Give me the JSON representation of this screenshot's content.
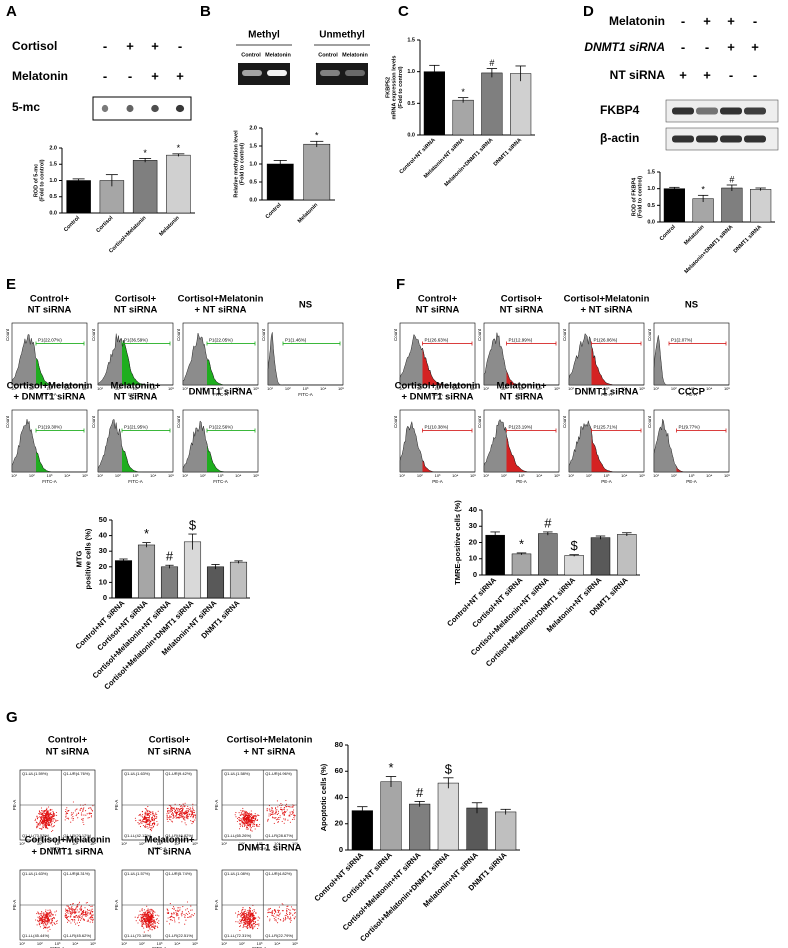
{
  "panel_labels": [
    "A",
    "B",
    "C",
    "D",
    "E",
    "F",
    "G"
  ],
  "panel_a": {
    "rows": [
      {
        "label": "Cortisol",
        "signs": [
          "-",
          "+",
          "+",
          "-"
        ]
      },
      {
        "label": "Melatonin",
        "signs": [
          "-",
          "-",
          "+",
          "+"
        ]
      }
    ],
    "blot_label": "5-mc"
  },
  "panel_b": {
    "headers": [
      "Methyl",
      "Unmethyl"
    ],
    "lanes": [
      "Control",
      "Melatonin",
      "Control",
      "Melatonin"
    ]
  },
  "panel_d": {
    "rows": [
      {
        "label": "Melatonin",
        "signs": [
          "-",
          "+",
          "+",
          "-"
        ]
      },
      {
        "label": "DNMT1 siRNA",
        "signs": [
          "-",
          "-",
          "+",
          "+"
        ]
      },
      {
        "label": "NT siRNA",
        "signs": [
          "+",
          "+",
          "-",
          "-"
        ]
      }
    ],
    "blots": [
      "FKBP4",
      "β-actin"
    ]
  },
  "flow_ticks": [
    "10¹",
    "10²",
    "10³",
    "10⁴",
    "10⁵"
  ],
  "panel_e": {
    "y_axis": "Count",
    "x_axis": "FITC-A",
    "plots": [
      {
        "title": [
          "Control+",
          "NT siRNA"
        ],
        "gate": "P1(22.07%)"
      },
      {
        "title": [
          "Cortisol+",
          "NT siRNA"
        ],
        "gate": "P1(36.59%)"
      },
      {
        "title": [
          "Cortisol+Melatonin",
          "+ NT siRNA"
        ],
        "gate": "P1(22.05%)"
      },
      {
        "title": [
          "NS"
        ],
        "gate": "P1(1.46%)"
      },
      {
        "title": [
          "Cortisol+Melatonin",
          "+ DNMT1 siRNA"
        ],
        "gate": "P1(19.30%)"
      },
      {
        "title": [
          "Melatonin+",
          "NT siRNA"
        ],
        "gate": "P1(21.95%)"
      },
      {
        "title": [
          "DNMT1 siRNA"
        ],
        "gate": "P1(22.56%)"
      }
    ]
  },
  "panel_f": {
    "y_axis": "Count",
    "x_axis": "PE-A",
    "plots": [
      {
        "title": [
          "Control+",
          "NT siRNA"
        ],
        "gate": "P1(26.63%)"
      },
      {
        "title": [
          "Cortisol+",
          "NT siRNA"
        ],
        "gate": "P1(12.99%)"
      },
      {
        "title": [
          "Cortisol+Melatonin",
          "+ NT siRNA"
        ],
        "gate": "P1(26.06%)"
      },
      {
        "title": [
          "NS"
        ],
        "gate": "P1(2.07%)"
      },
      {
        "title": [
          "Cortisol+Melatonin",
          "+ DNMT1 siRNA"
        ],
        "gate": "P1(10.38%)"
      },
      {
        "title": [
          "Melatonin+",
          "NT siRNA"
        ],
        "gate": "P1(23.19%)"
      },
      {
        "title": [
          "DNMT1 siRNA"
        ],
        "gate": "P1(25.71%)"
      },
      {
        "title": [
          "CCCP"
        ],
        "gate": "P1(9.77%)"
      }
    ]
  },
  "panel_g": {
    "y_axis": "PE-A",
    "x_axis": "FITC-A",
    "plots": [
      {
        "title": [
          "Control+",
          "NT siRNA"
        ],
        "quadrants": [
          "Q1-UL(1.59%)",
          "Q1-UR(4.76%)",
          "Q1-LL(73.53%)",
          "Q1-LR(20.12%)"
        ]
      },
      {
        "title": [
          "Cortisol+",
          "NT siRNA"
        ],
        "quadrants": [
          "Q1-UL(1.63%)",
          "Q1-UR(9.42%)",
          "Q1-LL(42.12%)",
          "Q1-LR(46.82%)"
        ]
      },
      {
        "title": [
          "Cortisol+Melatonin",
          "+ NT siRNA"
        ],
        "quadrants": [
          "Q1-UL(1.58%)",
          "Q1-UR(4.96%)",
          "Q1-LL(65.26%)",
          "Q1-LR(28.67%)"
        ]
      },
      {
        "title": [
          "Cortisol+Melatonin",
          "+ DNMT1 siRNA"
        ],
        "quadrants": [
          "Q1-UL(1.63%)",
          "Q1-UR(8.31%)",
          "Q1-LL(45.44%)",
          "Q1-LR(45.62%)"
        ]
      },
      {
        "title": [
          "Melatonin+",
          "NT siRNA"
        ],
        "quadrants": [
          "Q1-UL(1.57%)",
          "Q1-UR(5.74%)",
          "Q1-LL(70.18%)",
          "Q1-LR(22.51%)"
        ]
      },
      {
        "title": [
          "DNMT1 siRNA"
        ],
        "quadrants": [
          "Q1-UL(1.08%)",
          "Q1-UR(4.82%)",
          "Q1-LL(72.31%)",
          "Q1-LR(22.79%)"
        ]
      }
    ]
  },
  "chart_data": [
    {
      "type": "bar",
      "y_label": [
        "ROD of 5-mc",
        "(Fold to control)"
      ],
      "categories": [
        "Control",
        "Cortisol",
        "Cortisol+Melatonin",
        "Melatonin"
      ],
      "values": [
        1.0,
        1.0,
        1.62,
        1.78
      ],
      "errors": [
        0.05,
        0.18,
        0.06,
        0.04
      ],
      "annotations": [
        null,
        null,
        "*",
        "*"
      ],
      "colors": [
        "#000000",
        "#a6a6a6",
        "#7f7f7f",
        "#d0d0d0"
      ],
      "ylim": [
        0,
        2
      ],
      "yticks": [
        {
          "value": 0,
          "label": "0.0"
        },
        0.5,
        {
          "value": 1,
          "label": "1.0"
        },
        1.5,
        {
          "value": 2,
          "label": "2.0"
        }
      ]
    },
    {
      "type": "bar",
      "y_label": [
        "Relative methylation level",
        "(Fold to control)"
      ],
      "categories": [
        "Control",
        "Melatonin"
      ],
      "values": [
        1.0,
        1.55
      ],
      "errors": [
        0.1,
        0.08
      ],
      "annotations": [
        null,
        "*"
      ],
      "colors": [
        "#000000",
        "#a6a6a6"
      ],
      "ylim": [
        0,
        2
      ],
      "yticks": [
        {
          "value": 0,
          "label": "0.0"
        },
        0.5,
        {
          "value": 1,
          "label": "1.0"
        },
        1.5,
        {
          "value": 2,
          "label": "2.0"
        }
      ]
    },
    {
      "type": "bar",
      "y_label": [
        "FKBP52",
        "mRNA expression levels",
        "(Fold to control)"
      ],
      "categories": [
        "Control+NT siRNA",
        "Melatonin+NT siRNA",
        "Melatonin+DNMT1 siRNA",
        "DNMT1 siRNA"
      ],
      "values": [
        1.0,
        0.55,
        0.98,
        0.97
      ],
      "errors": [
        0.1,
        0.04,
        0.07,
        0.12
      ],
      "annotations": [
        null,
        "*",
        "#",
        null
      ],
      "colors": [
        "#000000",
        "#a6a6a6",
        "#7f7f7f",
        "#d0d0d0"
      ],
      "ylim": [
        0,
        1.5
      ],
      "yticks": [
        {
          "value": 0,
          "label": "0.0"
        },
        0.5,
        {
          "value": 1,
          "label": "1.0"
        },
        1.5
      ]
    },
    {
      "type": "bar",
      "y_label": [
        "ROD of FKBP4",
        "(Fold to control)"
      ],
      "categories": [
        "Control",
        "Melatonin",
        "Melatonin+DNMT1 siRNA",
        "DNMT1 siRNA"
      ],
      "values": [
        1.0,
        0.7,
        1.02,
        0.98
      ],
      "errors": [
        0.04,
        0.1,
        0.09,
        0.04
      ],
      "annotations": [
        null,
        "*",
        "#",
        null
      ],
      "colors": [
        "#000000",
        "#a6a6a6",
        "#7f7f7f",
        "#d0d0d0"
      ],
      "ylim": [
        0,
        1.5
      ],
      "yticks": [
        {
          "value": 0,
          "label": "0.0"
        },
        0.5,
        {
          "value": 1,
          "label": "1.0"
        },
        1.5
      ]
    },
    {
      "type": "bar",
      "y_label": [
        "MTG",
        "positive cells (%)"
      ],
      "categories": [
        "Control+NT siRNA",
        "Cortisol+NT siRNA",
        "Cortisol+Melatonin+NT siRNA",
        "Cortisol+Melatonin+DNMT1 siRNA",
        "Melatonin+NT siRNA",
        "DNMT1 siRNA"
      ],
      "values": [
        24,
        34,
        20,
        36,
        20,
        23
      ],
      "errors": [
        1,
        1.5,
        1,
        5,
        1.5,
        0.8
      ],
      "annotations": [
        null,
        "*",
        "#",
        "$",
        null,
        null
      ],
      "colors": [
        "#000000",
        "#a6a6a6",
        "#7f7f7f",
        "#d9d9d9",
        "#595959",
        "#bfbfbf"
      ],
      "ylim": [
        0,
        50
      ],
      "yticks": [
        0,
        10,
        20,
        30,
        40,
        50
      ]
    },
    {
      "type": "bar",
      "y_label": [
        "TMRE-positive cells (%)"
      ],
      "categories": [
        "Control+NT siRNA",
        "Cortisol+NT siRNA",
        "Cortisol+Melatonin+NT siRNA",
        "Cortisol+Melatonin+DNMT1 siRNA",
        "Melatonin+NT siRNA",
        "DNMT1 siRNA"
      ],
      "values": [
        24.5,
        13,
        25.5,
        12,
        23,
        25
      ],
      "errors": [
        2,
        0.6,
        1,
        0.5,
        1,
        1
      ],
      "annotations": [
        null,
        "*",
        "#",
        "$",
        null,
        null
      ],
      "colors": [
        "#000000",
        "#a6a6a6",
        "#7f7f7f",
        "#d9d9d9",
        "#595959",
        "#bfbfbf"
      ],
      "ylim": [
        0,
        40
      ],
      "yticks": [
        0,
        10,
        20,
        30,
        40
      ]
    },
    {
      "type": "bar",
      "y_label": [
        "Apoptotic cells (%)"
      ],
      "categories": [
        "Control+NT siRNA",
        "Cortisol+NT siRNA",
        "Cortisol+Melatonin+NT siRNA",
        "Cortisol+Melatonin+DNMT1 siRNA",
        "Melatonin+NT siRNA",
        "DNMT1 siRNA"
      ],
      "values": [
        30,
        52,
        35,
        51,
        32,
        29
      ],
      "errors": [
        3,
        4,
        2,
        4,
        4,
        2
      ],
      "annotations": [
        null,
        "*",
        "#",
        "$",
        null,
        null
      ],
      "colors": [
        "#000000",
        "#a6a6a6",
        "#7f7f7f",
        "#d9d9d9",
        "#595959",
        "#bfbfbf"
      ],
      "ylim": [
        0,
        80
      ],
      "yticks": [
        0,
        20,
        40,
        60,
        80
      ]
    }
  ]
}
